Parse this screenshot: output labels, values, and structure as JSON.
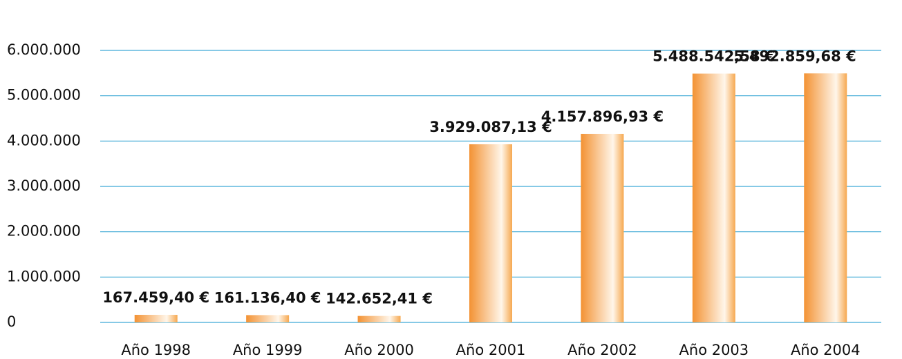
{
  "chart_data": {
    "type": "bar",
    "categories": [
      "Año 1998",
      "Año 1999",
      "Año 2000",
      "Año 2001",
      "Año 2002",
      "Año 2003",
      "Año 2004"
    ],
    "values": [
      167459.4,
      161136.4,
      142652.41,
      3929087.13,
      4157896.93,
      5488542.58,
      5492859.68
    ],
    "value_labels": [
      "167.459,40 €",
      "161.136,40 €",
      "142.652,41 €",
      "3.929.087,13 €",
      "4.157.896,93 €",
      "5.488.542,58 €",
      "5.492.859,68 €"
    ],
    "color": "#f39233",
    "ylim": [
      0,
      6000000
    ],
    "yticks": [
      0,
      {
        "value": 1000000,
        "label": "1.000.000"
      },
      {
        "value": 2000000,
        "label": "2.000.000"
      },
      {
        "value": 3000000,
        "label": "3.000.000"
      },
      {
        "value": 4000000,
        "label": "4.000.000"
      },
      {
        "value": 5000000,
        "label": "5.000.000"
      },
      {
        "value": 6000000,
        "label": "6.000.000"
      }
    ],
    "grid": true,
    "grid_color": "#3fa9d6"
  }
}
